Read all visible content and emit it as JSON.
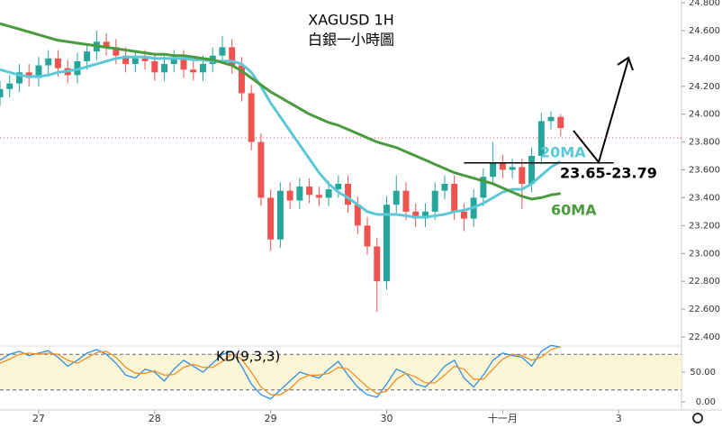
{
  "chart_data": {
    "type": "candlestick",
    "title": "XAGUSD 1H",
    "subtitle": "白銀一小時圖",
    "x": [
      16,
      18,
      20,
      22,
      24,
      26,
      28,
      30,
      32,
      34,
      36,
      38,
      40,
      42,
      44,
      46,
      48,
      50,
      52,
      54,
      56,
      58,
      60,
      62,
      64,
      66,
      68,
      70,
      72,
      74,
      76,
      78,
      80,
      82,
      84,
      86,
      88,
      90,
      92,
      94,
      96,
      98,
      100,
      102,
      104,
      106,
      108,
      110,
      112,
      114,
      116,
      118,
      120,
      122,
      124,
      126,
      128,
      130,
      132
    ],
    "xlim": [
      16,
      157
    ],
    "xticks": [
      {
        "value": 24,
        "label": "27"
      },
      {
        "value": 48,
        "label": "28"
      },
      {
        "value": 72,
        "label": "29"
      },
      {
        "value": 96,
        "label": "30"
      },
      {
        "value": 120,
        "label": "十一月"
      },
      {
        "value": 144,
        "label": "3"
      }
    ],
    "open": [
      24.12,
      24.18,
      24.22,
      24.3,
      24.26,
      24.35,
      24.4,
      24.33,
      24.28,
      24.38,
      24.45,
      24.52,
      24.48,
      24.42,
      24.36,
      24.4,
      24.38,
      24.3,
      24.36,
      24.4,
      24.32,
      24.3,
      24.36,
      24.42,
      24.48,
      24.35,
      24.15,
      23.8,
      23.4,
      23.1,
      23.45,
      23.38,
      23.48,
      23.42,
      23.4,
      23.46,
      23.5,
      23.35,
      23.2,
      23.05,
      22.8,
      23.35,
      23.45,
      23.3,
      23.25,
      23.3,
      23.45,
      23.5,
      23.3,
      23.25,
      23.4,
      23.55,
      23.65,
      23.6,
      23.62,
      23.5,
      23.7,
      23.95,
      23.98
    ],
    "high": [
      24.24,
      24.28,
      24.36,
      24.36,
      24.41,
      24.46,
      24.46,
      24.39,
      24.44,
      24.51,
      24.6,
      24.58,
      24.54,
      24.48,
      24.46,
      24.46,
      24.44,
      24.42,
      24.46,
      24.46,
      24.38,
      24.42,
      24.48,
      24.56,
      24.54,
      24.41,
      24.21,
      23.86,
      23.46,
      23.51,
      23.51,
      23.54,
      23.54,
      23.48,
      23.52,
      23.56,
      23.56,
      23.41,
      23.26,
      23.11,
      23.41,
      23.56,
      23.51,
      23.36,
      23.36,
      23.51,
      23.56,
      23.56,
      23.36,
      23.46,
      23.61,
      23.8,
      23.71,
      23.68,
      23.68,
      23.76,
      24.01,
      24.02,
      24.0
    ],
    "low": [
      24.06,
      24.12,
      24.16,
      24.2,
      24.2,
      24.29,
      24.27,
      24.22,
      24.22,
      24.32,
      24.39,
      24.42,
      24.36,
      24.3,
      24.3,
      24.32,
      24.24,
      24.24,
      24.3,
      24.26,
      24.24,
      24.24,
      24.3,
      24.36,
      24.29,
      24.09,
      23.74,
      23.34,
      23.02,
      23.04,
      23.32,
      23.32,
      23.36,
      23.34,
      23.34,
      23.4,
      23.29,
      23.14,
      22.99,
      22.58,
      22.74,
      23.29,
      23.24,
      23.19,
      23.19,
      23.24,
      23.39,
      23.24,
      23.16,
      23.19,
      23.34,
      23.49,
      23.54,
      23.54,
      23.32,
      23.44,
      23.64,
      23.89,
      23.84
    ],
    "close": [
      24.18,
      24.22,
      24.3,
      24.26,
      24.35,
      24.4,
      24.33,
      24.28,
      24.38,
      24.45,
      24.52,
      24.48,
      24.42,
      24.36,
      24.4,
      24.38,
      24.3,
      24.36,
      24.4,
      24.32,
      24.3,
      24.36,
      24.42,
      24.48,
      24.35,
      24.15,
      23.8,
      23.4,
      23.1,
      23.45,
      23.38,
      23.48,
      23.42,
      23.4,
      23.46,
      23.5,
      23.35,
      23.2,
      23.05,
      22.8,
      23.35,
      23.45,
      23.3,
      23.25,
      23.3,
      23.45,
      23.5,
      23.3,
      23.25,
      23.4,
      23.55,
      23.65,
      23.6,
      23.62,
      23.5,
      23.7,
      23.95,
      23.98,
      23.9
    ],
    "up_color": "#26a69a",
    "down_color": "#ef5350",
    "series": [
      {
        "name": "20MA",
        "color": "#5bc8d8",
        "values": [
          24.32,
          24.3,
          24.28,
          24.27,
          24.27,
          24.28,
          24.3,
          24.31,
          24.32,
          24.34,
          24.36,
          24.38,
          24.4,
          24.41,
          24.41,
          24.41,
          24.4,
          24.4,
          24.4,
          24.4,
          24.39,
          24.39,
          24.38,
          24.38,
          24.38,
          24.36,
          24.3,
          24.2,
          24.08,
          23.98,
          23.88,
          23.78,
          23.68,
          23.58,
          23.5,
          23.44,
          23.4,
          23.35,
          23.3,
          23.28,
          23.28,
          23.28,
          23.27,
          23.26,
          23.26,
          23.27,
          23.28,
          23.3,
          23.31,
          23.33,
          23.36,
          23.4,
          23.44,
          23.46,
          23.46,
          23.5,
          23.56,
          23.62,
          23.66
        ]
      },
      {
        "name": "60MA",
        "color": "#4a9a3f",
        "values": [
          24.65,
          24.63,
          24.61,
          24.59,
          24.57,
          24.55,
          24.53,
          24.52,
          24.51,
          24.5,
          24.49,
          24.48,
          24.47,
          24.46,
          24.45,
          24.44,
          24.43,
          24.43,
          24.42,
          24.42,
          24.41,
          24.4,
          24.39,
          24.37,
          24.35,
          24.31,
          24.26,
          24.21,
          24.16,
          24.12,
          24.08,
          24.04,
          24.0,
          23.97,
          23.94,
          23.92,
          23.89,
          23.86,
          23.83,
          23.8,
          23.78,
          23.76,
          23.73,
          23.7,
          23.67,
          23.64,
          23.61,
          23.58,
          23.56,
          23.54,
          23.52,
          23.5,
          23.47,
          23.44,
          23.41,
          23.39,
          23.4,
          23.42,
          23.43
        ]
      }
    ],
    "ylim": [
      22.4,
      24.8
    ],
    "yticks": [
      {
        "value": 22.4,
        "label": "22.400"
      },
      {
        "value": 22.6,
        "label": "22.600"
      },
      {
        "value": 22.8,
        "label": "22.800"
      },
      {
        "value": 23.0,
        "label": "23.000"
      },
      {
        "value": 23.2,
        "label": "23.200"
      },
      {
        "value": 23.4,
        "label": "23.400"
      },
      {
        "value": 23.6,
        "label": "23.600"
      },
      {
        "value": 23.8,
        "label": "23.800"
      },
      {
        "value": 24.0,
        "label": "24.000"
      },
      {
        "value": 24.2,
        "label": "24.200"
      },
      {
        "value": 24.4,
        "label": "24.400"
      },
      {
        "value": 24.6,
        "label": "24.600"
      },
      {
        "value": 24.8,
        "label": "24.800"
      }
    ],
    "current_price": 23.83,
    "support_level": 23.65,
    "support_label": "23.65-23.79",
    "kd": {
      "title": "KD(9,3,3)",
      "ylim": [
        0,
        100
      ],
      "yticks": [
        {
          "value": 0,
          "label": "0.00"
        },
        {
          "value": 50,
          "label": "50.00"
        }
      ],
      "bands": [
        20,
        80
      ],
      "k": {
        "color": "#2f8fe0",
        "values": [
          70,
          80,
          85,
          78,
          82,
          86,
          75,
          60,
          70,
          82,
          88,
          80,
          65,
          45,
          40,
          55,
          50,
          35,
          55,
          70,
          60,
          50,
          65,
          80,
          85,
          60,
          30,
          12,
          5,
          20,
          35,
          50,
          45,
          40,
          55,
          68,
          45,
          25,
          12,
          8,
          30,
          55,
          48,
          30,
          25,
          40,
          60,
          70,
          40,
          25,
          45,
          70,
          82,
          78,
          75,
          60,
          85,
          95,
          92
        ]
      },
      "d": {
        "color": "#f0902a",
        "values": [
          65,
          72,
          80,
          82,
          80,
          82,
          80,
          70,
          65,
          74,
          83,
          85,
          75,
          58,
          48,
          48,
          52,
          45,
          46,
          58,
          63,
          58,
          58,
          68,
          80,
          72,
          50,
          25,
          12,
          12,
          22,
          38,
          45,
          45,
          48,
          58,
          55,
          40,
          25,
          14,
          18,
          38,
          48,
          42,
          32,
          32,
          45,
          60,
          55,
          38,
          38,
          55,
          72,
          80,
          78,
          70,
          75,
          88,
          93
        ]
      }
    }
  }
}
